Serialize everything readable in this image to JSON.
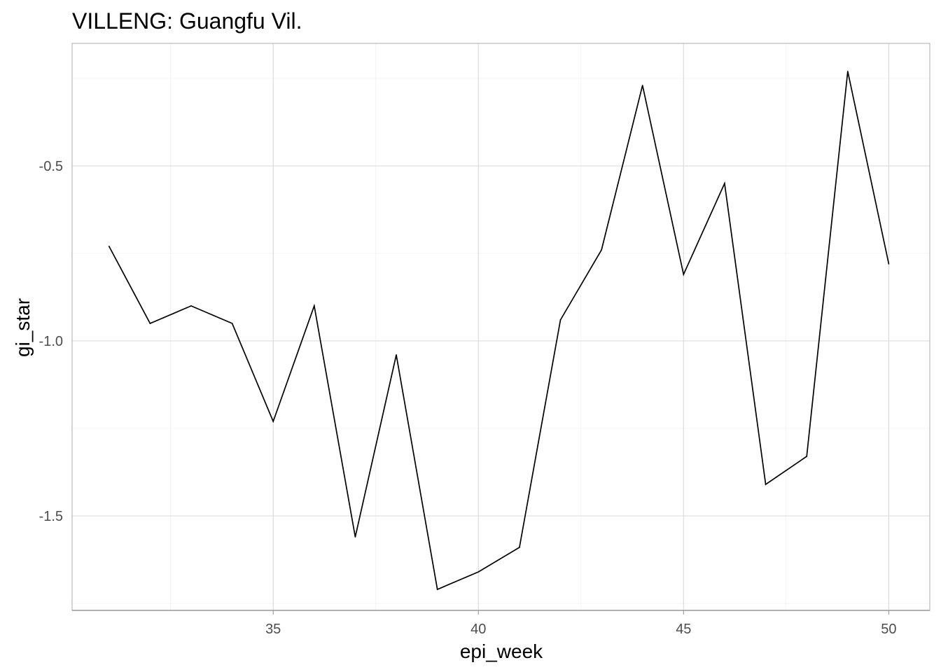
{
  "chart_data": {
    "type": "line",
    "title": "VILLENG: Guangfu Vil.",
    "xlabel": "epi_week",
    "ylabel": "gi_star",
    "xlim": [
      30.1,
      51.0
    ],
    "ylim": [
      -1.77,
      -0.15
    ],
    "x_ticks": [
      35,
      40,
      45,
      50
    ],
    "x_tick_labels": [
      "35",
      "40",
      "45",
      "50"
    ],
    "y_ticks": [
      -1.5,
      -1.0,
      -0.5
    ],
    "y_tick_labels": [
      "-1.5",
      "-1.0",
      "-0.5"
    ],
    "grid": true,
    "legend": "none",
    "line_color": "#000000",
    "series": [
      {
        "x": [
          31,
          32,
          33,
          34,
          35,
          36,
          37,
          38,
          39,
          40,
          41,
          42,
          43,
          44,
          45,
          46,
          47,
          48,
          49,
          50
        ],
        "values": [
          -0.73,
          -0.95,
          -0.9,
          -0.95,
          -1.23,
          -0.9,
          -1.56,
          -1.04,
          -1.71,
          -1.66,
          -1.59,
          -0.94,
          -0.74,
          -0.27,
          -0.81,
          -0.55,
          -1.41,
          -1.33,
          -0.23,
          -0.78
        ]
      }
    ]
  }
}
